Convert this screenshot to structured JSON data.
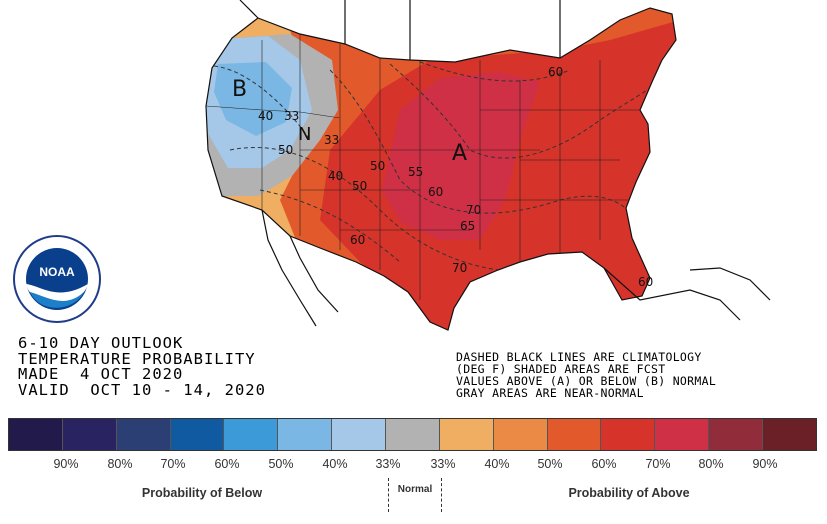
{
  "title_block": {
    "line1": "6-10 DAY OUTLOOK",
    "line2": "TEMPERATURE PROBABILITY",
    "line3": "MADE  4 OCT 2020",
    "line4": "VALID  OCT 10 - 14, 2020"
  },
  "notes": {
    "line1": "DASHED BLACK LINES ARE CLIMATOLOGY",
    "line2": "(DEG F) SHADED AREAS ARE FCST",
    "line3": "VALUES ABOVE (A) OR BELOW (B) NORMAL",
    "line4": "GRAY AREAS ARE NEAR-NORMAL"
  },
  "map_letters": {
    "below": "B",
    "above": "A",
    "near_normal": "N"
  },
  "contour_labels": [
    "40",
    "33",
    "50",
    "33",
    "50",
    "40",
    "50",
    "55",
    "60",
    "60",
    "70",
    "65",
    "70",
    "60",
    "60"
  ],
  "legend": {
    "colors": [
      "#211a4a",
      "#2a2361",
      "#2b3f75",
      "#0f5aa0",
      "#3d9ad8",
      "#7ab7e4",
      "#a5c8e8",
      "#b2b2b2",
      "#f0ae62",
      "#eb8a45",
      "#e25a2b",
      "#d6332b",
      "#cf3046",
      "#912c3a",
      "#6b1f27"
    ],
    "ticks_below": [
      "90%",
      "80%",
      "70%",
      "60%",
      "50%",
      "40%",
      "33%"
    ],
    "ticks_above": [
      "33%",
      "40%",
      "50%",
      "60%",
      "70%",
      "80%",
      "90%"
    ],
    "caption_below": "Probability of Below",
    "caption_normal": "Normal",
    "caption_above": "Probability of Above"
  },
  "logo": {
    "name": "NOAA"
  }
}
